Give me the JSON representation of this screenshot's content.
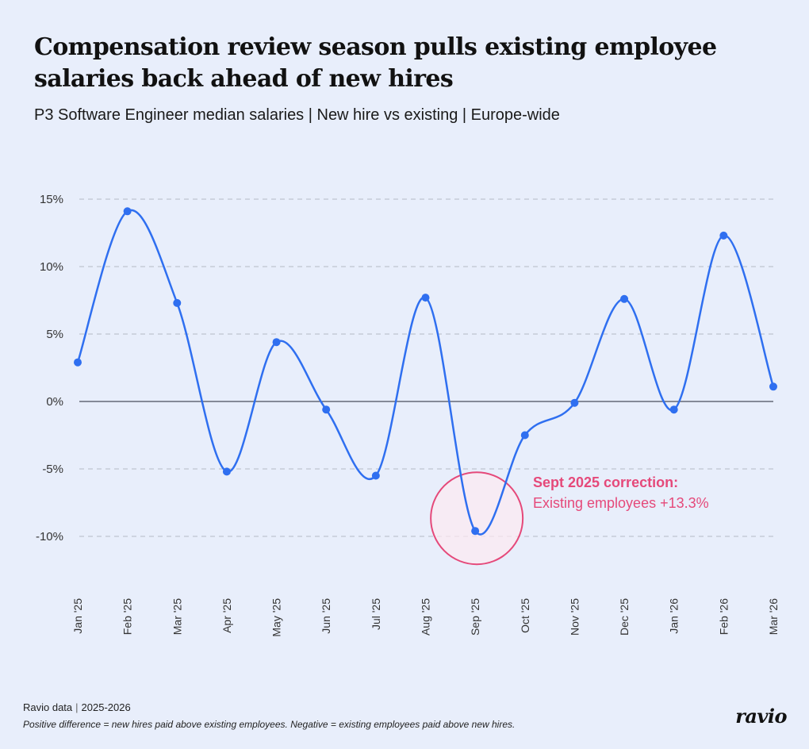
{
  "header": {
    "title": "Compensation review season pulls existing employee salaries back ahead of new hires",
    "subtitle": "P3 Software Engineer median salaries | New hire vs existing | Europe-wide"
  },
  "chart_data": {
    "type": "line",
    "categories": [
      "Jan '25",
      "Feb '25",
      "Mar '25",
      "Apr '25",
      "May '25",
      "Jun '25",
      "Jul '25",
      "Aug '25",
      "Sep '25",
      "Oct '25",
      "Nov '25",
      "Dec '25",
      "Jan '26",
      "Feb '26",
      "Mar '26"
    ],
    "series": [
      {
        "values": [
          2.9,
          14.1,
          7.3,
          -5.2,
          4.4,
          -0.6,
          -5.5,
          7.7,
          -9.6,
          -2.5,
          -0.1,
          7.6,
          -0.6,
          12.3,
          1.1
        ]
      }
    ],
    "ylim": [
      -10,
      15
    ],
    "yticks": [
      15,
      10,
      5,
      0,
      -5,
      -10
    ],
    "ytick_labels": [
      "15%",
      "10%",
      "5%",
      "0%",
      "-5%",
      "-10%"
    ],
    "grid": true,
    "colors": {
      "line": "#2f6ff0",
      "zero_line": "#4a4f5c",
      "grid": "#b4b9c4",
      "highlight": "#e5497a",
      "highlight_fill": "#fde9f1"
    },
    "annotation": {
      "category": "Sep '25",
      "title": "Sept 2025 correction:",
      "text": "Existing employees +13.3%"
    }
  },
  "footer": {
    "source_left": "Ravio data",
    "source_right": "2025-2026",
    "note": "Positive difference = new hires paid above existing employees. Negative = existing employees paid above new hires.",
    "logo": "ravio"
  }
}
